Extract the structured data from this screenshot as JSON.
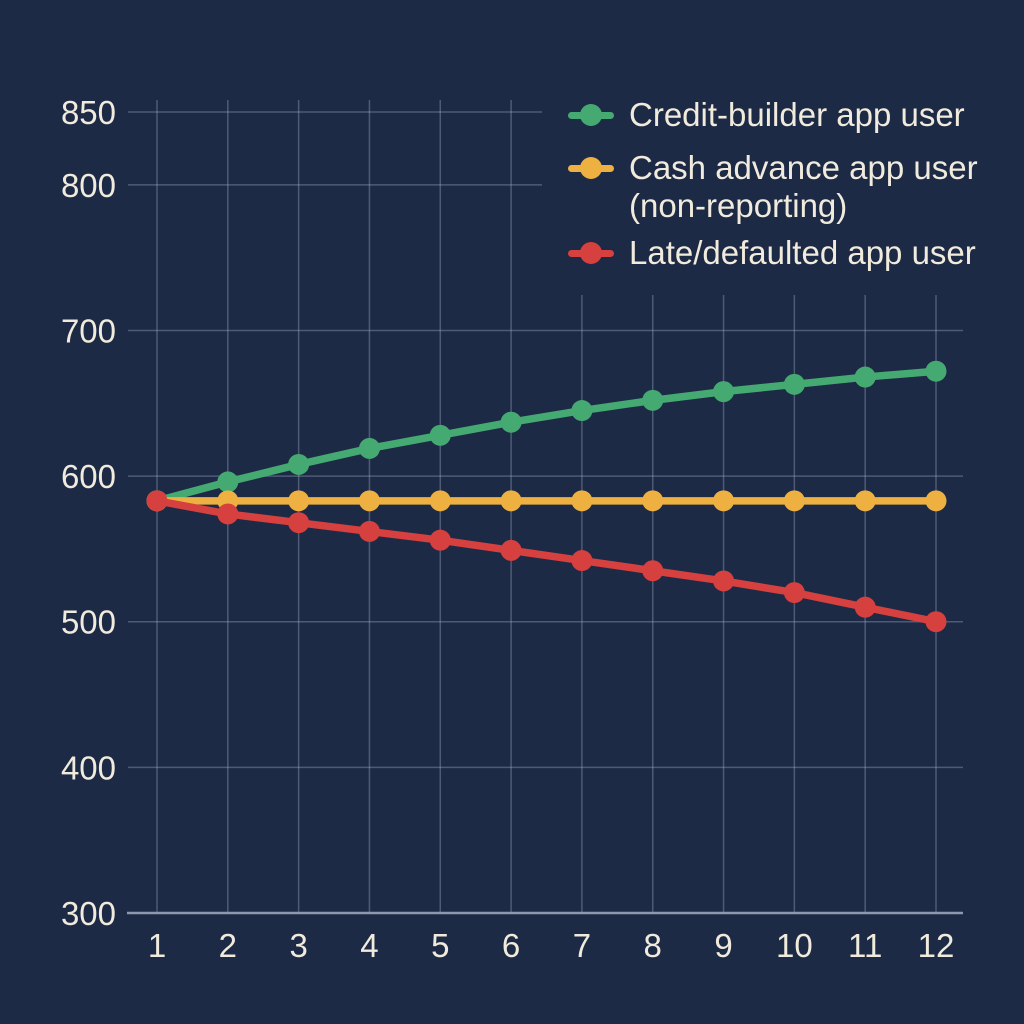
{
  "chart": {
    "background_color": "#1d2a46",
    "text_color": "#f0ebdc",
    "grid_color": "rgba(168,184,212,0.35)",
    "axis_color": "#8e99ad"
  },
  "legend": {
    "items": [
      {
        "label": "Credit-builder app user",
        "label2": "",
        "color": "#45aa72"
      },
      {
        "label": "Cash advance app user",
        "label2": "(non-reporting)",
        "color": "#eeb041"
      },
      {
        "label": "Late/defaulted app user",
        "label2": "",
        "color": "#d6403f"
      }
    ]
  },
  "chart_data": {
    "type": "line",
    "title": "",
    "xlabel": "",
    "ylabel": "",
    "grid": true,
    "legend_position": "top-right",
    "x": [
      1,
      2,
      3,
      4,
      5,
      6,
      7,
      8,
      9,
      10,
      11,
      12
    ],
    "x_tick_labels": [
      "1",
      "2",
      "3",
      "4",
      "5",
      "6",
      "7",
      "8",
      "9",
      "10",
      "11",
      "12"
    ],
    "y_ticks": [
      850,
      800,
      700,
      600,
      500,
      400,
      300
    ],
    "ylim": [
      300,
      850
    ],
    "series": [
      {
        "name": "Credit-builder app user",
        "color": "#45aa72",
        "values": [
          583,
          596,
          608,
          619,
          628,
          637,
          645,
          652,
          658,
          663,
          668,
          672
        ]
      },
      {
        "name": "Cash advance app user (non-reporting)",
        "color": "#eeb041",
        "values": [
          583,
          583,
          583,
          583,
          583,
          583,
          583,
          583,
          583,
          583,
          583,
          583
        ]
      },
      {
        "name": "Late/defaulted app user",
        "color": "#d6403f",
        "values": [
          583,
          574,
          568,
          562,
          556,
          549,
          542,
          535,
          528,
          520,
          510,
          500
        ]
      }
    ]
  }
}
